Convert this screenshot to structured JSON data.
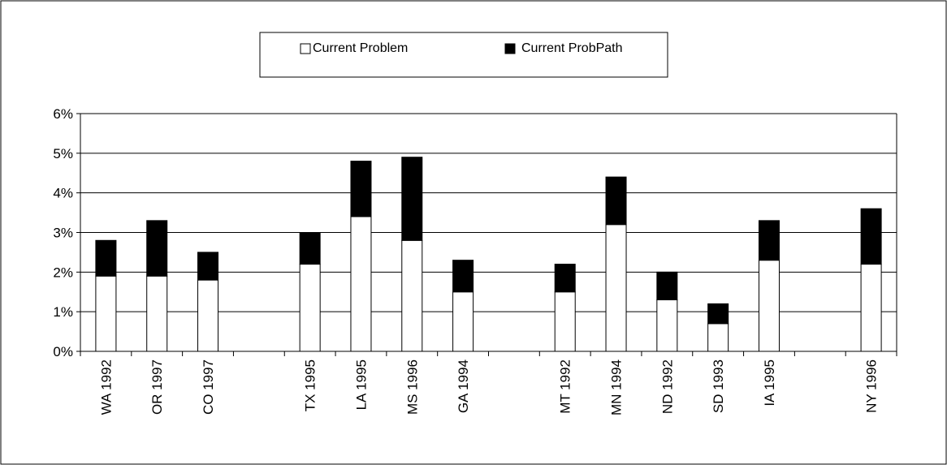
{
  "chart_data": {
    "type": "bar",
    "stacked": true,
    "categories": [
      "WA 1992",
      "OR 1997",
      "CO 1997",
      "",
      "TX 1995",
      "LA 1995",
      "MS 1996",
      "GA 1994",
      "",
      "MT 1992",
      "MN 1994",
      "ND 1992",
      "SD 1993",
      "IA 1995",
      "",
      "NY 1996"
    ],
    "series": [
      {
        "name": "Current Problem",
        "color": "#ffffff",
        "values": [
          1.9,
          1.9,
          1.8,
          null,
          2.2,
          3.4,
          2.8,
          1.5,
          null,
          1.5,
          3.2,
          1.3,
          0.7,
          2.3,
          null,
          2.2
        ]
      },
      {
        "name": "Current ProbPath",
        "color": "#000000",
        "values": [
          0.9,
          1.4,
          0.7,
          null,
          0.8,
          1.4,
          2.1,
          0.8,
          null,
          0.7,
          1.2,
          0.7,
          0.5,
          1.0,
          null,
          1.4
        ]
      }
    ],
    "yticks": [
      "0%",
      "1%",
      "2%",
      "3%",
      "4%",
      "5%",
      "6%"
    ],
    "ylim": [
      0,
      6
    ],
    "y_unit": "%",
    "grid": true,
    "legend_position": "top-center",
    "title": "",
    "xlabel": "",
    "ylabel": ""
  }
}
